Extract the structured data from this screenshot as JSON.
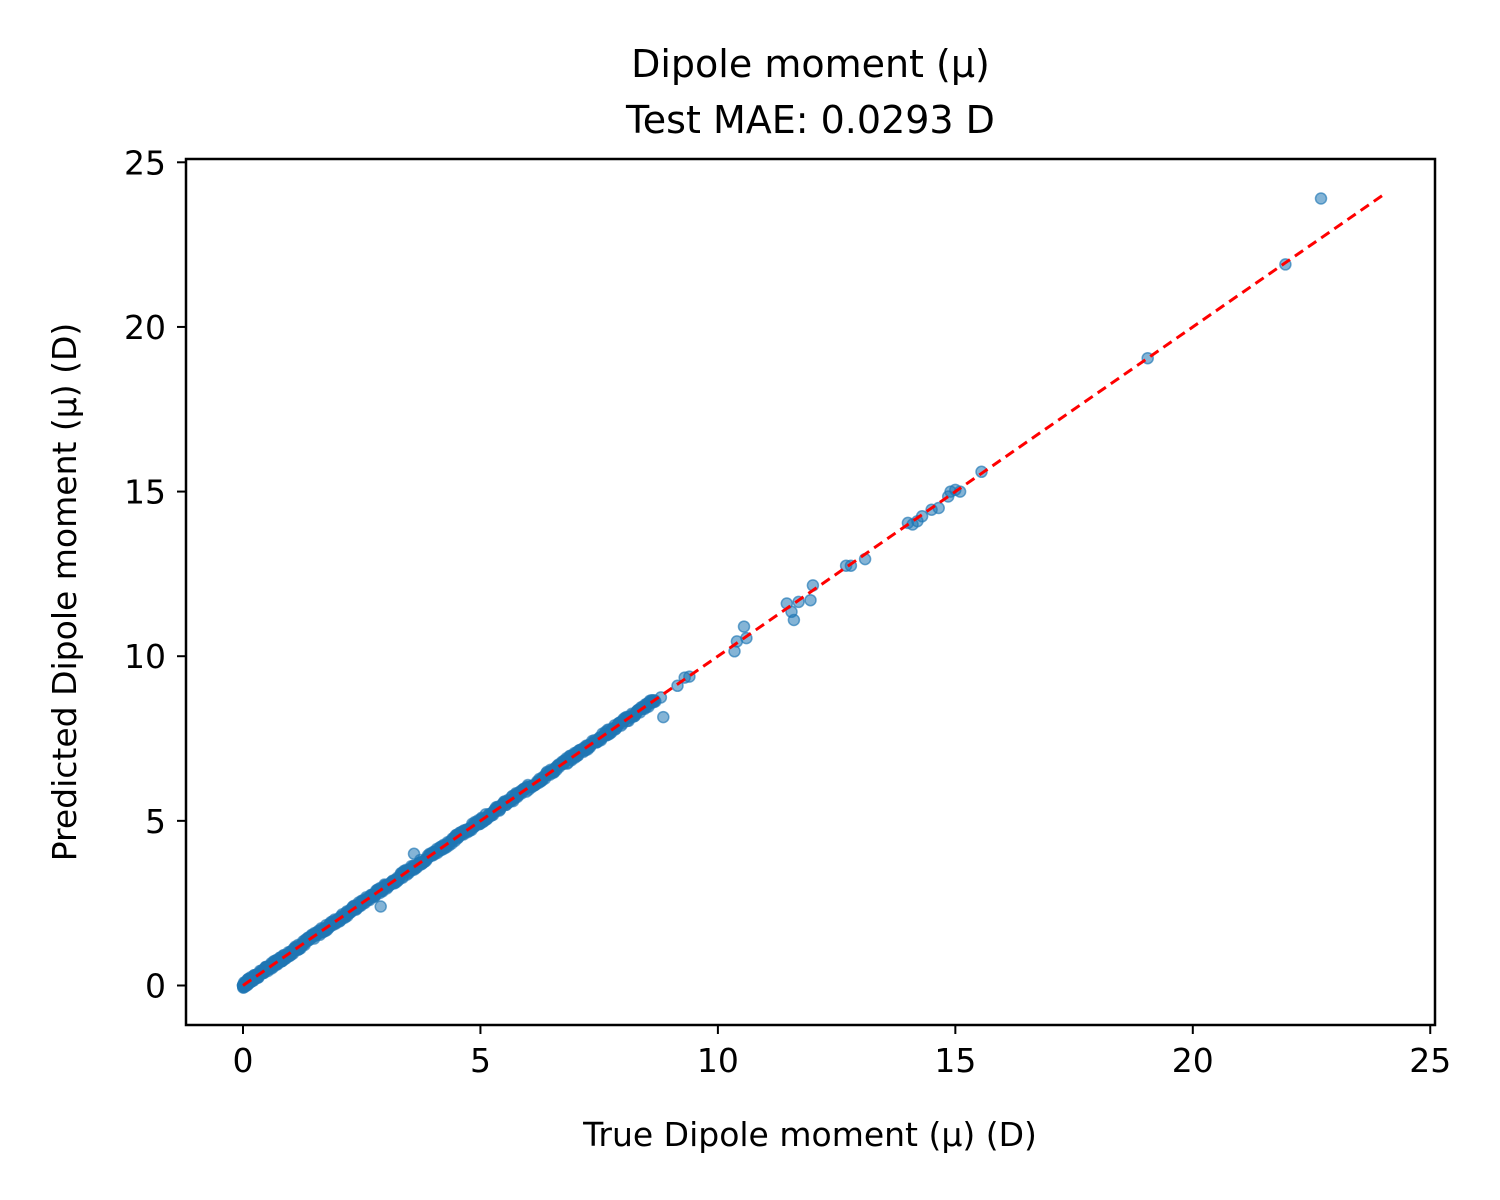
{
  "chart_data": {
    "type": "scatter",
    "title": "Dipole moment (μ)",
    "subtitle": "Test MAE: 0.0293 D",
    "xlabel": "True Dipole moment (μ) (D)",
    "ylabel": "Predicted Dipole moment (μ) (D)",
    "xlim": [
      -1.2,
      25.1
    ],
    "ylim": [
      -1.2,
      25.1
    ],
    "xticks": [
      "0",
      "5",
      "10",
      "15",
      "20",
      "25"
    ],
    "yticks": [
      "0",
      "5",
      "10",
      "15",
      "20",
      "25"
    ],
    "grid": false,
    "point_color": "#1f77b4",
    "reference_line": {
      "label": "",
      "color": "#ff0000",
      "style": "dashed",
      "x": [
        0,
        24
      ],
      "y": [
        0,
        24
      ]
    },
    "dense_band": {
      "x_range": [
        0,
        8.7
      ],
      "description_note": ""
    },
    "points": [
      [
        0.0,
        0.0
      ],
      [
        0.1,
        0.12
      ],
      [
        0.25,
        0.22
      ],
      [
        0.5,
        0.52
      ],
      [
        0.75,
        0.73
      ],
      [
        1.0,
        1.02
      ],
      [
        1.25,
        1.23
      ],
      [
        1.5,
        1.52
      ],
      [
        1.75,
        1.73
      ],
      [
        2.0,
        2.02
      ],
      [
        2.25,
        2.22
      ],
      [
        2.5,
        2.53
      ],
      [
        2.75,
        2.72
      ],
      [
        2.9,
        2.4
      ],
      [
        3.0,
        3.02
      ],
      [
        3.25,
        3.22
      ],
      [
        3.5,
        3.52
      ],
      [
        3.75,
        3.74
      ],
      [
        3.6,
        4.0
      ],
      [
        4.0,
        4.02
      ],
      [
        4.25,
        4.23
      ],
      [
        4.5,
        4.52
      ],
      [
        4.75,
        4.74
      ],
      [
        5.0,
        5.02
      ],
      [
        5.25,
        5.22
      ],
      [
        5.5,
        5.52
      ],
      [
        5.75,
        5.74
      ],
      [
        6.0,
        6.02
      ],
      [
        6.25,
        6.23
      ],
      [
        6.5,
        6.52
      ],
      [
        6.75,
        6.74
      ],
      [
        7.0,
        7.02
      ],
      [
        7.25,
        7.23
      ],
      [
        7.5,
        7.52
      ],
      [
        7.75,
        7.74
      ],
      [
        8.0,
        8.02
      ],
      [
        8.3,
        8.3
      ],
      [
        8.5,
        8.55
      ],
      [
        8.8,
        8.75
      ],
      [
        8.85,
        8.15
      ],
      [
        9.15,
        9.1
      ],
      [
        9.3,
        9.35
      ],
      [
        9.4,
        9.38
      ],
      [
        10.35,
        10.15
      ],
      [
        10.4,
        10.45
      ],
      [
        10.55,
        10.9
      ],
      [
        10.6,
        10.55
      ],
      [
        11.45,
        11.6
      ],
      [
        11.55,
        11.35
      ],
      [
        11.6,
        11.1
      ],
      [
        11.7,
        11.65
      ],
      [
        11.95,
        11.7
      ],
      [
        12.0,
        12.15
      ],
      [
        12.7,
        12.75
      ],
      [
        12.8,
        12.75
      ],
      [
        13.1,
        12.95
      ],
      [
        14.0,
        14.05
      ],
      [
        14.1,
        14.0
      ],
      [
        14.2,
        14.1
      ],
      [
        14.3,
        14.25
      ],
      [
        14.5,
        14.45
      ],
      [
        14.65,
        14.5
      ],
      [
        14.85,
        14.85
      ],
      [
        14.9,
        15.0
      ],
      [
        15.0,
        15.05
      ],
      [
        15.1,
        15.0
      ],
      [
        15.55,
        15.6
      ],
      [
        19.05,
        19.05
      ],
      [
        21.95,
        21.9
      ],
      [
        22.7,
        23.9
      ]
    ]
  }
}
